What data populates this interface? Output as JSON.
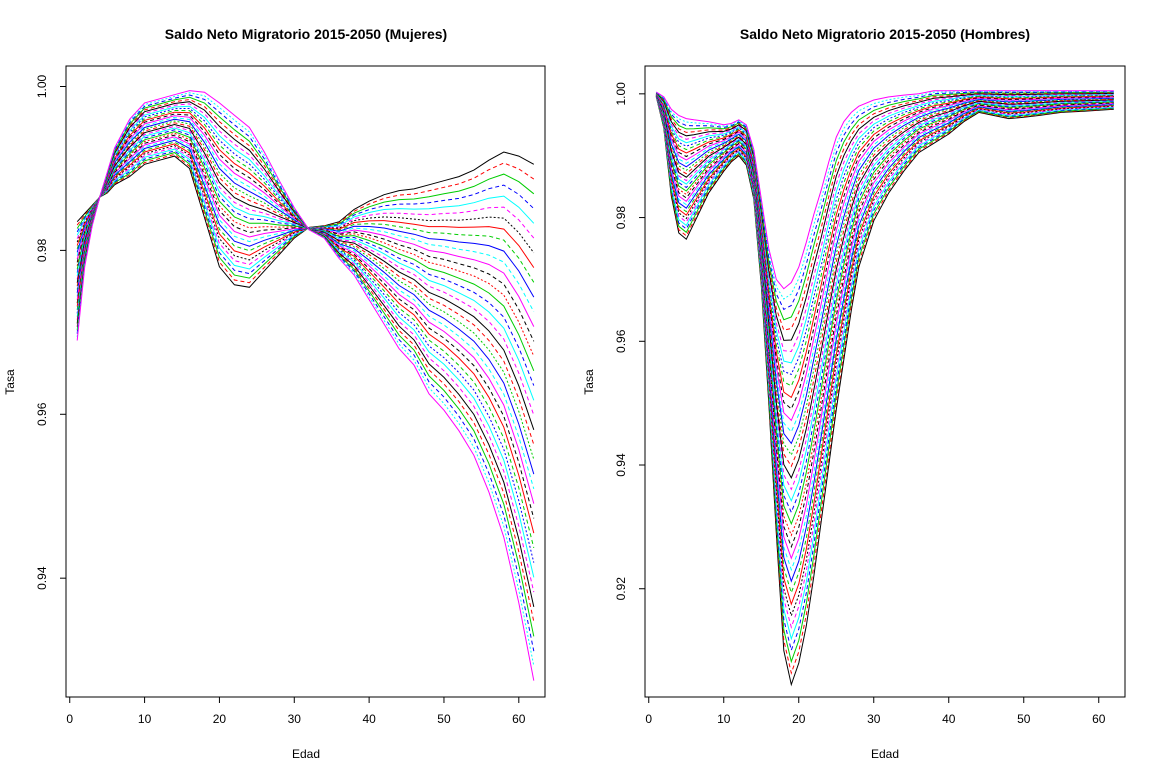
{
  "chart_data": [
    {
      "type": "line",
      "title": "Saldo Neto Migratorio 2015-2050 (Mujeres)",
      "xlabel": "Edad",
      "ylabel": "Tasa",
      "xlim": [
        -0.5,
        63.5
      ],
      "ylim": [
        0.9255,
        1.0025
      ],
      "xticks": [
        0,
        10,
        20,
        30,
        40,
        50,
        60
      ],
      "xtick_labels": [
        "0",
        "10",
        "20",
        "30",
        "40",
        "50",
        "60"
      ],
      "yticks": [
        0.94,
        0.96,
        0.98,
        1.0
      ],
      "ytick_labels": [
        "0.94",
        "0.96",
        "0.98",
        "1.00"
      ],
      "grid": false,
      "series_count": 36,
      "line_colors": [
        "#000000",
        "#ff0000",
        "#00cd00",
        "#0000ff",
        "#00ffff",
        "#ff00ff"
      ],
      "x": [
        1,
        2,
        3,
        4,
        5,
        6,
        8,
        10,
        12,
        14,
        16,
        18,
        20,
        22,
        24,
        26,
        28,
        30,
        32,
        34,
        36,
        38,
        40,
        42,
        44,
        46,
        48,
        50,
        52,
        54,
        56,
        58,
        60,
        62
      ],
      "series": [
        {
          "values": [
            0.9835,
            0.9845,
            0.9855,
            0.9865,
            0.987,
            0.988,
            0.989,
            0.9905,
            0.991,
            0.9915,
            0.99,
            0.984,
            0.978,
            0.9758,
            0.9755,
            0.9775,
            0.9795,
            0.9815,
            0.9828,
            0.983,
            0.9835,
            0.985,
            0.986,
            0.9868,
            0.9873,
            0.9875,
            0.988,
            0.9885,
            0.989,
            0.9898,
            0.991,
            0.992,
            0.9915,
            0.9905
          ]
        },
        {
          "values": [
            0.969,
            0.978,
            0.983,
            0.9865,
            0.9895,
            0.9925,
            0.996,
            0.998,
            0.9985,
            0.999,
            0.9995,
            0.9993,
            0.998,
            0.9965,
            0.995,
            0.992,
            0.9885,
            0.9852,
            0.9825,
            0.9815,
            0.979,
            0.977,
            0.974,
            0.971,
            0.968,
            0.966,
            0.9625,
            0.9605,
            0.958,
            0.955,
            0.9505,
            0.945,
            0.937,
            0.9275
          ]
        }
      ]
    },
    {
      "type": "line",
      "title": "Saldo Neto Migratorio 2015-2050 (Hombres)",
      "xlabel": "Edad",
      "ylabel": "Tasa",
      "xlim": [
        -0.5,
        63.5
      ],
      "ylim": [
        0.9025,
        1.0045
      ],
      "xticks": [
        0,
        10,
        20,
        30,
        40,
        50,
        60
      ],
      "xtick_labels": [
        "0",
        "10",
        "20",
        "30",
        "40",
        "50",
        "60"
      ],
      "yticks": [
        0.92,
        0.94,
        0.96,
        0.98,
        1.0
      ],
      "ytick_labels": [
        "0.92",
        "0.94",
        "0.96",
        "0.98",
        "1.00"
      ],
      "grid": false,
      "series_count": 36,
      "line_colors": [
        "#000000",
        "#ff0000",
        "#00cd00",
        "#0000ff",
        "#00ffff",
        "#ff00ff"
      ],
      "x": [
        1,
        2,
        3,
        4,
        5,
        6,
        8,
        10,
        11,
        12,
        13,
        14,
        15,
        16,
        17,
        18,
        19,
        20,
        21,
        22,
        23,
        24,
        25,
        26,
        27,
        28,
        30,
        32,
        34,
        36,
        38,
        40,
        42,
        44,
        46,
        48,
        50,
        52,
        55,
        58,
        62
      ],
      "series": [
        {
          "values": [
            0.9995,
            0.9945,
            0.9835,
            0.9775,
            0.9765,
            0.979,
            0.984,
            0.9875,
            0.989,
            0.99,
            0.9885,
            0.983,
            0.969,
            0.95,
            0.929,
            0.91,
            0.9045,
            0.908,
            0.914,
            0.922,
            0.931,
            0.94,
            0.949,
            0.957,
            0.965,
            0.972,
            0.9795,
            0.984,
            0.9875,
            0.9905,
            0.992,
            0.9935,
            0.9955,
            0.997,
            0.9965,
            0.996,
            0.9962,
            0.9965,
            0.997,
            0.9972,
            0.9975
          ]
        },
        {
          "values": [
            1.0003,
            0.9995,
            0.9975,
            0.9965,
            0.996,
            0.9958,
            0.9955,
            0.995,
            0.9952,
            0.9958,
            0.995,
            0.991,
            0.983,
            0.975,
            0.97,
            0.9685,
            0.9695,
            0.972,
            0.976,
            0.9805,
            0.9845,
            0.989,
            0.993,
            0.9955,
            0.997,
            0.998,
            0.999,
            0.9995,
            0.9998,
            1.0,
            1.0005,
            1.0005,
            1.0005,
            1.0005,
            1.0005,
            1.0005,
            1.0005,
            1.0005,
            1.0005,
            1.0005,
            1.0005
          ]
        }
      ]
    }
  ]
}
